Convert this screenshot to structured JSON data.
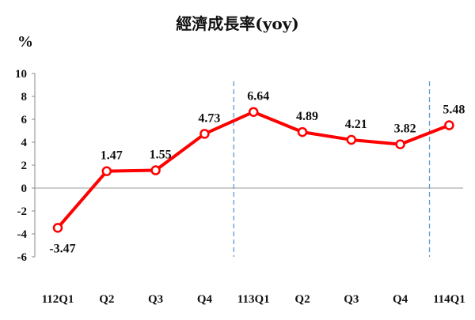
{
  "chart_data": {
    "type": "line",
    "title": "經濟成長率(yoy)",
    "ylabel": "%",
    "xlabel": "",
    "categories": [
      "112Q1",
      "Q2",
      "Q3",
      "Q4",
      "113Q1",
      "Q2",
      "Q3",
      "Q4",
      "114Q1"
    ],
    "series": [
      {
        "values": [
          -3.47,
          1.47,
          1.55,
          4.73,
          6.64,
          4.89,
          4.21,
          3.82,
          5.48
        ]
      }
    ],
    "data_labels": [
      "-3.47",
      "1.47",
      "1.55",
      "4.73",
      "6.64",
      "4.89",
      "4.21",
      "3.82",
      "5.48"
    ],
    "yticks": [
      10,
      8,
      6,
      4,
      2,
      0,
      -2,
      -4,
      -6
    ],
    "ytick_labels": [
      "10",
      "8",
      "6",
      "4",
      "2",
      "0",
      "-2",
      "-4",
      "-6"
    ],
    "ylim": [
      -6,
      10
    ],
    "grid": false,
    "legend": "none",
    "line_color": "#ff0000",
    "divider_color": "#5b9bd5",
    "divider_after_categories": [
      "Q4",
      "Q4"
    ]
  }
}
